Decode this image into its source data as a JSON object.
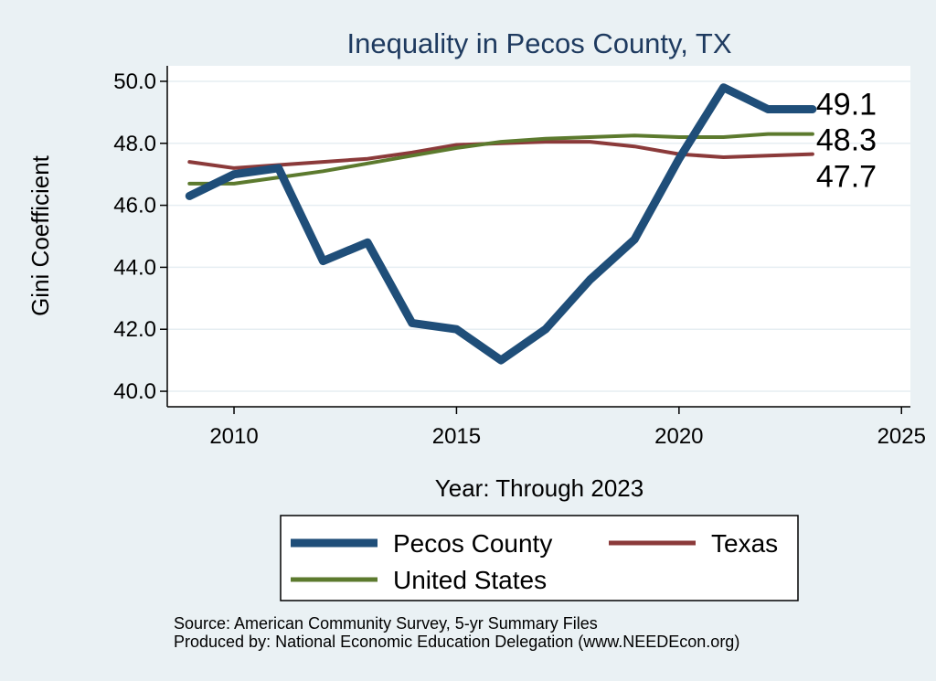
{
  "chart_data": {
    "type": "line",
    "title": "Inequality in Pecos County, TX",
    "xlabel": "Year: Through 2023",
    "ylabel": "Gini Coefficient",
    "xlim": [
      2008.5,
      2025.2
    ],
    "ylim": [
      39.5,
      50.5
    ],
    "x_ticks": [
      2010,
      2015,
      2020,
      2025
    ],
    "y_ticks": [
      40.0,
      42.0,
      44.0,
      46.0,
      48.0,
      50.0
    ],
    "y_tick_labels": [
      "40.0",
      "42.0",
      "44.0",
      "46.0",
      "48.0",
      "50.0"
    ],
    "grid": true,
    "legend_position": "bottom",
    "x": [
      2009,
      2010,
      2011,
      2012,
      2013,
      2014,
      2015,
      2016,
      2017,
      2018,
      2019,
      2020,
      2021,
      2022,
      2023
    ],
    "series": [
      {
        "name": "Pecos County",
        "color": "#1f4e79",
        "width": 9,
        "values": [
          46.3,
          47.0,
          47.2,
          44.2,
          44.8,
          42.2,
          42.0,
          41.0,
          42.0,
          43.6,
          44.9,
          47.5,
          49.8,
          49.1,
          49.1
        ],
        "end_label": "49.1"
      },
      {
        "name": "Texas",
        "color": "#8b3a3a",
        "width": 4,
        "values": [
          47.4,
          47.2,
          47.3,
          47.4,
          47.5,
          47.7,
          47.95,
          48.0,
          48.05,
          48.05,
          47.9,
          47.65,
          47.55,
          47.6,
          47.65
        ],
        "end_label": "47.7"
      },
      {
        "name": "United States",
        "color": "#5c7a2e",
        "width": 4,
        "values": [
          46.7,
          46.7,
          46.9,
          47.1,
          47.35,
          47.6,
          47.85,
          48.05,
          48.15,
          48.2,
          48.25,
          48.2,
          48.2,
          48.3,
          48.3
        ],
        "end_label": "48.3"
      }
    ],
    "notes": [
      "Source: American Community Survey, 5-yr Summary Files",
      "Produced by: National Economic Education Delegation (www.NEEDEcon.org)"
    ]
  }
}
